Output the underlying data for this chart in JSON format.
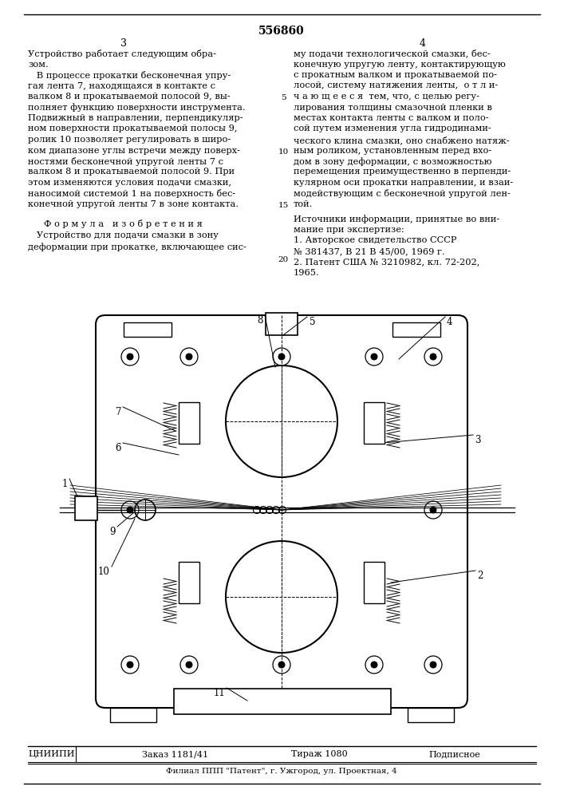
{
  "patent_number": "556860",
  "page_left": "3",
  "page_right": "4",
  "col1_lines": [
    "Устройство работает следующим обра-",
    "зом.",
    "   В процессе прокатки бесконечная упру-",
    "гая лента 7, находящаяся в контакте с",
    "валком 8 и прокатываемой полосой 9, вы-",
    "полняет функцию поверхности инструмента.",
    "Подвижный в направлении, перпендикуляр-",
    "ном поверхности прокатываемой полосы 9,",
    "ролик 10 позволяет регулировать в широ-",
    "ком диапазоне углы встречи между поверх-",
    "ностями бесконечной упругой ленты 7 с",
    "валком 8 и прокатываемой полосой 9. При",
    "этом изменяются условия подачи смазки,",
    "наносимой системой 1 на поверхность бес-",
    "конечной упругой ленты 7 в зоне контакта."
  ],
  "formula_title": "Ф о р м у л а   и з о б р е т е н и я",
  "formula_lines": [
    "   Устройство для подачи смазки в зону",
    "деформации при прокатке, включающее сис-"
  ],
  "col2_lines": [
    "му подачи технологической смазки, бес-",
    "конечную упругую ленту, контактирующую",
    "с прокатным валком и прокатываемой по-",
    "лосой, систему натяжения ленты,  о т л и-",
    "ч а ю щ е е с я  тем, что, с целью регу-",
    "лирования толщины смазочной пленки в",
    "местах контакта ленты с валком и поло-",
    "сой путем изменения угла гидродинами-",
    "ческого клина смазки, оно снабжено натяж-",
    "ным роликом, установленным перед вхо-",
    "дом в зону деформации, с возможностью",
    "перемещения преимущественно в перпенди-",
    "кулярном оси прокатки направлении, и взаи-",
    "модействующим с бесконечной упругой лен-",
    "той."
  ],
  "sources_title": "Источники информации, принятые во вни-",
  "sources_subtitle": "мание при экспертизе:",
  "source1": "1. Авторское свидетельство СССР",
  "source1b": "№ 381437, В 21 В 45/00, 1969 г.",
  "source2": "2. Патент США № 3210982, кл. 72-202,",
  "source2b": "1965.",
  "col2_line_numbers": [
    "5",
    "10",
    "15",
    "20"
  ],
  "footer_institute": "ЦНИИПИ",
  "footer_order": "Заказ 1181/41",
  "footer_circulation": "Тираж 1080",
  "footer_type": "Подписное",
  "footer_address": "Филиал ППП \"Патент\", г. Ужгород, ул. Проектная, 4",
  "bg_color": "#ffffff",
  "text_color": "#000000",
  "line_color": "#000000"
}
